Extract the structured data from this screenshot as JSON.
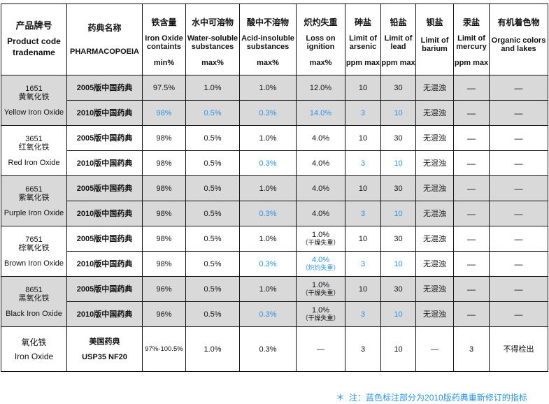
{
  "headers": {
    "product": {
      "cn": "产品牌号",
      "en": "Product code tradename"
    },
    "pharma": {
      "cn": "药典名称",
      "en": "PHARMACOPOEIA"
    },
    "iron": {
      "cn": "铁含量",
      "en": "Iron Oxide containts",
      "unit": "min%"
    },
    "water": {
      "cn": "水中可溶物",
      "en": "Water-soluble substances",
      "unit": "max%"
    },
    "acid": {
      "cn": "酸中不溶物",
      "en": "Acid-insoluble substances",
      "unit": "max%"
    },
    "loss": {
      "cn": "炽灼失重",
      "en": "Loss on ignition",
      "unit": "max%"
    },
    "arsenic": {
      "cn": "砷盐",
      "en": "Limit of arsenic",
      "unit": "ppm max"
    },
    "lead": {
      "cn": "铅盐",
      "en": "Limit of lead",
      "unit": "ppm max"
    },
    "barium": {
      "cn": "钡盐",
      "en": "Limit of barium"
    },
    "mercury": {
      "cn": "汞盐",
      "en": "Limit of mercury",
      "unit": "ppm max"
    },
    "organic": {
      "cn": "有机着色物",
      "en": "Organic colors and lakes"
    }
  },
  "products": [
    {
      "code": "1651",
      "cn": "黄氧化铁",
      "en": "Yellow Iron Oxide",
      "rows": [
        {
          "pharma": "2005版中国药典",
          "iron": "97.5%",
          "water": "1.0%",
          "acid": "1.0%",
          "loss": "12.0%",
          "loss_sub": "",
          "arsenic": "10",
          "lead": "30",
          "barium": "无混浊",
          "mercury": "—",
          "organic": "—"
        },
        {
          "pharma": "2010版中国药典",
          "iron": "98%",
          "water": "0.5%",
          "acid": "0.3%",
          "loss": "14.0%",
          "loss_sub": "",
          "arsenic": "3",
          "lead": "10",
          "barium": "无混浊",
          "mercury": "—",
          "organic": "—"
        }
      ]
    },
    {
      "code": "3651",
      "cn": "红氧化铁",
      "en": "Red Iron Oxide",
      "rows": [
        {
          "pharma": "2005版中国药典",
          "iron": "98%",
          "water": "0.5%",
          "acid": "1.0%",
          "loss": "4.0%",
          "loss_sub": "",
          "arsenic": "10",
          "lead": "30",
          "barium": "无混浊",
          "mercury": "—",
          "organic": "—"
        },
        {
          "pharma": "2010版中国药典",
          "iron": "98%",
          "water": "0.5%",
          "acid": "0.3%",
          "loss": "4.0%",
          "loss_sub": "",
          "arsenic": "3",
          "lead": "10",
          "barium": "无混浊",
          "mercury": "—",
          "organic": "—"
        }
      ]
    },
    {
      "code": "6651",
      "cn": "紫氧化铁",
      "en": "Purple Iron Oxide",
      "rows": [
        {
          "pharma": "2005版中国药典",
          "iron": "98%",
          "water": "0.5%",
          "acid": "1.0%",
          "loss": "4.0%",
          "loss_sub": "",
          "arsenic": "10",
          "lead": "30",
          "barium": "无混浊",
          "mercury": "—",
          "organic": "—"
        },
        {
          "pharma": "2010版中国药典",
          "iron": "98%",
          "water": "0.5%",
          "acid": "0.3%",
          "loss": "4.0%",
          "loss_sub": "",
          "arsenic": "3",
          "lead": "10",
          "barium": "无混浊",
          "mercury": "—",
          "organic": "—"
        }
      ]
    },
    {
      "code": "7651",
      "cn": "棕氧化铁",
      "en": "Brown Iron Oxide",
      "rows": [
        {
          "pharma": "2005版中国药典",
          "iron": "98%",
          "water": "0.5%",
          "acid": "1.0%",
          "loss": "1.0%",
          "loss_sub": "（干燥失重）",
          "arsenic": "10",
          "lead": "30",
          "barium": "无混浊",
          "mercury": "—",
          "organic": "—"
        },
        {
          "pharma": "2010版中国药典",
          "iron": "98%",
          "water": "0.5%",
          "acid": "0.3%",
          "loss": "4.0%",
          "loss_sub": "（炽灼失重）",
          "arsenic": "3",
          "lead": "10",
          "barium": "无混浊",
          "mercury": "—",
          "organic": "—"
        }
      ]
    },
    {
      "code": "8651",
      "cn": "黑氧化铁",
      "en": "Black Iron Oxide",
      "rows": [
        {
          "pharma": "2005版中国药典",
          "iron": "96%",
          "water": "0.5%",
          "acid": "1.0%",
          "loss": "1.0%",
          "loss_sub": "（干燥失重）",
          "arsenic": "10",
          "lead": "30",
          "barium": "无混浊",
          "mercury": "—",
          "organic": "—"
        },
        {
          "pharma": "2010版中国药典",
          "iron": "96%",
          "water": "0.5%",
          "acid": "0.3%",
          "loss": "1.0%",
          "loss_sub": "（干燥失重）",
          "arsenic": "3",
          "lead": "10",
          "barium": "无混浊",
          "mercury": "—",
          "organic": "—"
        }
      ]
    }
  ],
  "usp": {
    "cn": "氧化铁",
    "en": "Iron Oxide",
    "pharma_cn": "美国药典",
    "pharma_en": "USP35 NF20",
    "iron": "97%-100.5%",
    "water": "1.0%",
    "acid": "0.3%",
    "loss": "—",
    "arsenic": "3",
    "lead": "10",
    "barium": "—",
    "mercury": "3",
    "organic": "不得检出"
  },
  "note": {
    "star": "＊",
    "text": "注：蓝色标注部分为2010版药典重新修订的指标"
  },
  "colors": {
    "revised": "#2a93e8",
    "band": "#d9d9d9"
  }
}
